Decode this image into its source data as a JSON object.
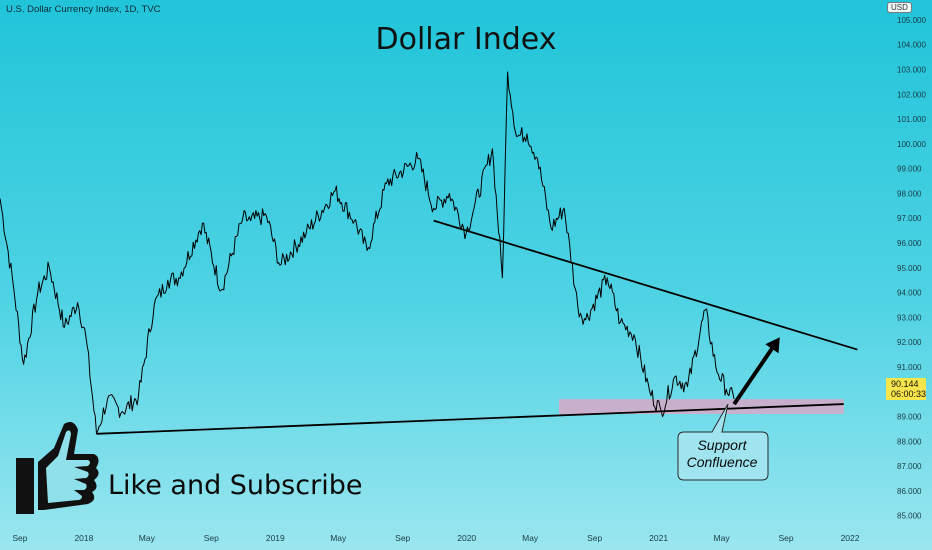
{
  "header": {
    "ticker_text": "U.S. Dollar Currency Index, 1D, TVC",
    "currency_badge": "USD"
  },
  "annotations": {
    "callout_line1": "Support",
    "callout_line2": "Confluence",
    "subscribe_text": "Like and Subscribe"
  },
  "price_tag": {
    "price": "90.144",
    "countdown": "06:00:33",
    "color": "#f8e54a"
  },
  "icons": {
    "thumbs_up": "thumbs-up-icon",
    "arrow": "up-arrow-icon"
  },
  "colors": {
    "background_top": "#21c4d9",
    "background_bottom": "#9ae6ef",
    "price_line": "#000000",
    "support_zone": "#d8a8c8"
  },
  "chart_data": {
    "type": "line",
    "title": "Dollar Index",
    "xlabel": "",
    "ylabel": "",
    "x_ticks": [
      "Sep",
      "2018",
      "May",
      "Sep",
      "2019",
      "May",
      "Sep",
      "2020",
      "May",
      "Sep",
      "2021",
      "May",
      "Sep",
      "2022"
    ],
    "y_ticks": [
      "85.000",
      "86.000",
      "87.000",
      "88.000",
      "89.000",
      "90.000",
      "91.000",
      "92.000",
      "93.000",
      "94.000",
      "95.000",
      "96.000",
      "97.000",
      "98.000",
      "99.000",
      "100.000",
      "101.000",
      "102.000",
      "103.000",
      "104.000",
      "105.000"
    ],
    "ylim": [
      84.5,
      105.4
    ],
    "x_range": [
      "2017-07-25",
      "2022-01-20"
    ],
    "grid": false,
    "series": [
      {
        "x": [
          "2017-07-25",
          "2017-08-20",
          "2017-09-08",
          "2017-10-05",
          "2017-10-27",
          "2017-11-25",
          "2017-12-20",
          "2018-01-05",
          "2018-01-25",
          "2018-02-15",
          "2018-03-15",
          "2018-04-15",
          "2018-05-15",
          "2018-06-10",
          "2018-07-01",
          "2018-08-15",
          "2018-09-20",
          "2018-10-31",
          "2018-11-15",
          "2018-12-15",
          "2019-01-10",
          "2019-03-01",
          "2019-04-25",
          "2019-06-01",
          "2019-06-25",
          "2019-08-01",
          "2019-09-30",
          "2019-10-30",
          "2019-11-29",
          "2019-12-31",
          "2020-01-15",
          "2020-02-19",
          "2020-03-09",
          "2020-03-19",
          "2020-04-05",
          "2020-04-25",
          "2020-05-15",
          "2020-06-10",
          "2020-07-05",
          "2020-07-31",
          "2020-08-15",
          "2020-09-25",
          "2020-10-20",
          "2020-11-15",
          "2020-12-15",
          "2021-01-06",
          "2021-02-01",
          "2021-02-25",
          "2021-03-31",
          "2021-04-20",
          "2021-05-10",
          "2021-05-25"
        ],
        "y": [
          97.8,
          94.2,
          91.1,
          94.0,
          95.0,
          92.6,
          93.6,
          92.2,
          88.3,
          89.7,
          89.2,
          89.8,
          93.5,
          94.5,
          94.6,
          96.8,
          94.1,
          97.0,
          96.9,
          97.1,
          95.1,
          96.4,
          98.1,
          96.9,
          95.7,
          98.4,
          99.4,
          97.4,
          98.0,
          96.4,
          97.4,
          99.8,
          94.6,
          102.9,
          100.3,
          100.4,
          99.4,
          96.6,
          97.4,
          93.4,
          92.9,
          94.6,
          92.8,
          92.3,
          90.0,
          89.2,
          90.6,
          90.2,
          93.3,
          91.0,
          90.1,
          89.7
        ]
      }
    ],
    "annotations": [
      {
        "type": "trendline",
        "name": "resistance",
        "from": [
          "2019-10-30",
          96.9
        ],
        "to": [
          "2022-01-15",
          91.7
        ]
      },
      {
        "type": "trendline",
        "name": "support",
        "from": [
          "2018-01-25",
          88.3
        ],
        "to": [
          "2021-12-20",
          89.5
        ]
      },
      {
        "type": "zone",
        "name": "support-zone",
        "from": [
          "2020-06-25",
          89.1
        ],
        "to": [
          "2021-12-20",
          89.7
        ]
      },
      {
        "type": "arrow",
        "name": "up-arrow",
        "from": [
          "2021-05-25",
          89.5
        ],
        "to": [
          "2021-08-20",
          92.2
        ]
      }
    ]
  }
}
